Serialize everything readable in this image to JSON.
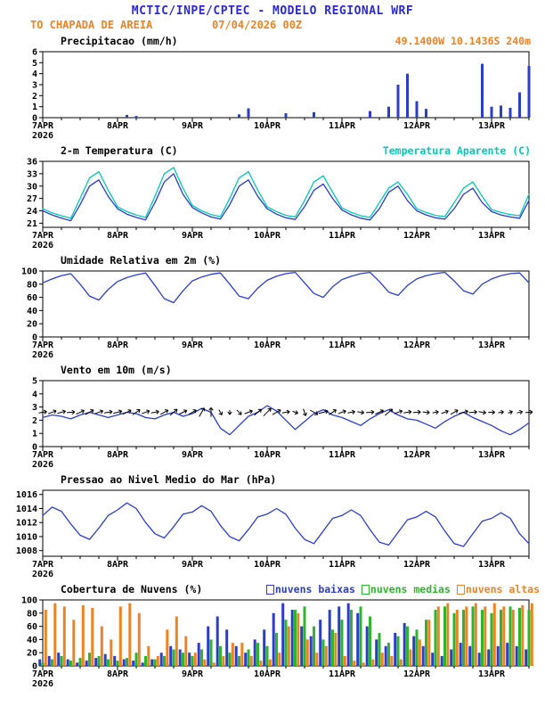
{
  "header": {
    "title": "MCTIC/INPE/CPTEC - MODELO REGIONAL WRF",
    "station": "TO CHAPADA DE AREIA",
    "run": "07/04/2026 00Z"
  },
  "colors": {
    "title_blue": "#2a2ad0",
    "orange": "#ee8322",
    "line_blue": "#2c3ec9",
    "cyan": "#00c9b8",
    "green": "#2db52d",
    "black": "#000000"
  },
  "x_axis": {
    "labels": [
      "7APR",
      "8APR",
      "9APR",
      "10APR",
      "11APR",
      "12APR",
      "13APR"
    ],
    "year": "2026",
    "hours_total": 156,
    "step_hours": 3,
    "major_every": 24,
    "minor_every": 6
  },
  "chart_data": [
    {
      "id": "precip",
      "type": "bar",
      "title": "Precipitacao (mm/h)",
      "right_label": "49.1400W 10.1436S 240m",
      "ylim": [
        0,
        6
      ],
      "yticks": [
        0,
        1,
        2,
        3,
        4,
        5,
        6
      ],
      "color_key": "line_blue",
      "values": [
        0,
        0,
        0,
        0,
        0,
        0,
        0,
        0,
        0,
        0.25,
        0.15,
        0,
        0,
        0,
        0,
        0,
        0,
        0,
        0,
        0,
        0,
        0.3,
        0.85,
        0,
        0,
        0,
        0.4,
        0,
        0,
        0.5,
        0,
        0,
        0,
        0,
        0,
        0.6,
        0,
        1.0,
        3.0,
        4.0,
        1.5,
        0.8,
        0,
        0,
        0,
        0,
        0,
        4.9,
        1.0,
        1.1,
        0.9,
        2.3,
        4.7
      ]
    },
    {
      "id": "temp2m",
      "type": "line",
      "title": "2-m Temperatura (C)",
      "right_label": "Temperatura Aparente (C)",
      "ylim": [
        20,
        36
      ],
      "yticks": [
        21,
        24,
        27,
        30,
        33,
        36
      ],
      "series": [
        {
          "name": "Temperatura Aparente (C)",
          "color_key": "cyan",
          "values": [
            24.5,
            23.5,
            22.8,
            22.2,
            27.0,
            32.0,
            33.5,
            29.0,
            25.0,
            23.8,
            23.0,
            22.4,
            27.5,
            33.0,
            34.5,
            29.5,
            25.3,
            24.0,
            23.1,
            22.6,
            27.0,
            32.0,
            33.5,
            29.0,
            25.0,
            23.8,
            22.9,
            22.5,
            26.5,
            31.0,
            32.5,
            28.5,
            24.7,
            23.6,
            22.8,
            22.4,
            26.0,
            29.5,
            31.0,
            28.0,
            24.5,
            23.6,
            22.9,
            22.6,
            26.0,
            29.5,
            31.0,
            27.5,
            24.3,
            23.6,
            23.1,
            22.8,
            28.0
          ]
        },
        {
          "name": "2-m Temperatura (C)",
          "color_key": "line_blue",
          "values": [
            24.0,
            23.0,
            22.2,
            21.6,
            25.5,
            30.0,
            31.5,
            27.5,
            24.5,
            23.2,
            22.4,
            21.8,
            26.0,
            31.0,
            33.0,
            28.0,
            24.8,
            23.5,
            22.5,
            22.0,
            25.5,
            30.0,
            31.5,
            27.5,
            24.5,
            23.2,
            22.3,
            21.9,
            25.0,
            29.0,
            30.5,
            27.0,
            24.2,
            23.0,
            22.2,
            21.8,
            24.5,
            28.5,
            30.0,
            26.5,
            24.0,
            23.0,
            22.3,
            22.0,
            24.5,
            28.0,
            29.5,
            26.0,
            23.8,
            23.0,
            22.5,
            22.2,
            26.5
          ]
        }
      ]
    },
    {
      "id": "rh2m",
      "type": "line",
      "title": "Umidade Relativa em 2m (%)",
      "right_label": "",
      "ylim": [
        0,
        100
      ],
      "yticks": [
        0,
        20,
        40,
        60,
        80,
        100
      ],
      "series": [
        {
          "name": "Umidade Relativa em 2m (%)",
          "color_key": "line_blue",
          "values": [
            82,
            88,
            93,
            96,
            80,
            62,
            56,
            72,
            84,
            90,
            94,
            97,
            78,
            58,
            52,
            70,
            85,
            91,
            95,
            97,
            80,
            62,
            58,
            74,
            86,
            92,
            96,
            98,
            82,
            66,
            60,
            76,
            87,
            92,
            96,
            98,
            84,
            68,
            63,
            78,
            88,
            93,
            96,
            98,
            85,
            70,
            65,
            80,
            88,
            93,
            96,
            97,
            82
          ]
        }
      ]
    },
    {
      "id": "wind10m",
      "type": "wind",
      "title": "Vento em 10m (m/s)",
      "right_label": "",
      "ylim": [
        0,
        5
      ],
      "yticks": [
        0,
        1,
        2,
        3,
        4,
        5
      ],
      "series": [
        {
          "name": "Vento em 10m (m/s)",
          "color_key": "line_blue",
          "values": [
            2.2,
            2.4,
            2.3,
            2.1,
            2.4,
            2.6,
            2.4,
            2.2,
            2.4,
            2.6,
            2.5,
            2.2,
            2.1,
            2.4,
            2.6,
            2.3,
            2.5,
            2.9,
            2.6,
            1.4,
            0.9,
            1.6,
            2.3,
            2.6,
            3.1,
            2.7,
            2.0,
            1.3,
            1.9,
            2.5,
            2.8,
            2.4,
            2.2,
            1.9,
            1.6,
            2.1,
            2.5,
            2.8,
            2.4,
            2.1,
            2.0,
            1.7,
            1.4,
            1.9,
            2.3,
            2.6,
            2.2,
            1.9,
            1.6,
            1.2,
            0.9,
            1.3,
            1.8
          ]
        }
      ],
      "arrows": {
        "y_value": 2.6,
        "angles_deg_ccw_from_east": [
          10,
          20,
          15,
          5,
          25,
          30,
          20,
          10,
          15,
          25,
          35,
          20,
          10,
          30,
          40,
          25,
          30,
          60,
          90,
          -60,
          -90,
          -45,
          20,
          40,
          45,
          30,
          10,
          -20,
          -70,
          -30,
          15,
          35,
          20,
          10,
          -10,
          5,
          25,
          40,
          20,
          10,
          5,
          -5,
          10,
          20,
          30,
          15,
          5,
          -10,
          0,
          10,
          20,
          15,
          5
        ]
      }
    },
    {
      "id": "mslp",
      "type": "line",
      "title": "Pressao ao Nivel Medio do Mar (hPa)",
      "right_label": "",
      "ylim": [
        1007.2,
        1016.6
      ],
      "yticks": [
        1008,
        1010,
        1012,
        1014,
        1016
      ],
      "series": [
        {
          "name": "Pressao ao Nivel Medio do Mar (hPa)",
          "color_key": "line_blue",
          "values": [
            1013.0,
            1014.2,
            1013.6,
            1011.8,
            1010.2,
            1009.6,
            1011.2,
            1013.0,
            1013.8,
            1014.8,
            1014.0,
            1012.0,
            1010.4,
            1009.8,
            1011.4,
            1013.2,
            1013.5,
            1014.4,
            1013.6,
            1011.6,
            1010.0,
            1009.4,
            1011.0,
            1012.8,
            1013.2,
            1014.0,
            1013.2,
            1011.2,
            1009.6,
            1009.0,
            1010.8,
            1012.6,
            1013.0,
            1013.8,
            1013.0,
            1011.0,
            1009.2,
            1008.8,
            1010.6,
            1012.4,
            1012.8,
            1013.6,
            1012.8,
            1010.8,
            1009.0,
            1008.6,
            1010.4,
            1012.2,
            1012.6,
            1013.4,
            1012.6,
            1010.4,
            1009.0
          ]
        }
      ]
    },
    {
      "id": "clouds",
      "type": "cloudbar",
      "title": "Cobertura de Nuvens (%)",
      "ylim": [
        0,
        100
      ],
      "yticks": [
        0,
        20,
        40,
        60,
        80,
        100
      ],
      "legend": [
        {
          "label": "nuvens baixas",
          "color_key": "line_blue"
        },
        {
          "label": "nuvens medias",
          "color_key": "green"
        },
        {
          "label": "nuvens altas",
          "color_key": "orange"
        }
      ],
      "series": [
        {
          "name": "nuvens baixas",
          "color_key": "line_blue",
          "values": [
            10,
            15,
            20,
            10,
            5,
            8,
            12,
            18,
            15,
            10,
            8,
            5,
            10,
            20,
            30,
            25,
            20,
            35,
            60,
            75,
            55,
            30,
            20,
            40,
            55,
            80,
            95,
            85,
            60,
            45,
            70,
            85,
            90,
            95,
            80,
            60,
            40,
            30,
            50,
            65,
            45,
            30,
            20,
            15,
            25,
            35,
            30,
            20,
            25,
            30,
            35,
            30,
            25
          ]
        },
        {
          "name": "nuvens medias",
          "color_key": "green",
          "values": [
            5,
            10,
            15,
            8,
            12,
            20,
            15,
            10,
            8,
            12,
            20,
            15,
            10,
            15,
            25,
            20,
            15,
            25,
            40,
            30,
            20,
            15,
            25,
            35,
            30,
            50,
            70,
            85,
            90,
            60,
            40,
            55,
            70,
            85,
            90,
            75,
            50,
            35,
            45,
            60,
            55,
            70,
            85,
            90,
            80,
            85,
            90,
            85,
            80,
            85,
            90,
            88,
            85
          ]
        },
        {
          "name": "nuvens altas",
          "color_key": "orange",
          "values": [
            85,
            95,
            90,
            70,
            92,
            88,
            60,
            40,
            90,
            95,
            80,
            30,
            15,
            55,
            75,
            45,
            20,
            10,
            5,
            15,
            35,
            35,
            15,
            8,
            10,
            20,
            60,
            80,
            40,
            20,
            30,
            50,
            15,
            8,
            5,
            10,
            20,
            15,
            10,
            25,
            40,
            70,
            90,
            95,
            85,
            90,
            95,
            90,
            95,
            90,
            85,
            92,
            95
          ]
        }
      ]
    }
  ]
}
